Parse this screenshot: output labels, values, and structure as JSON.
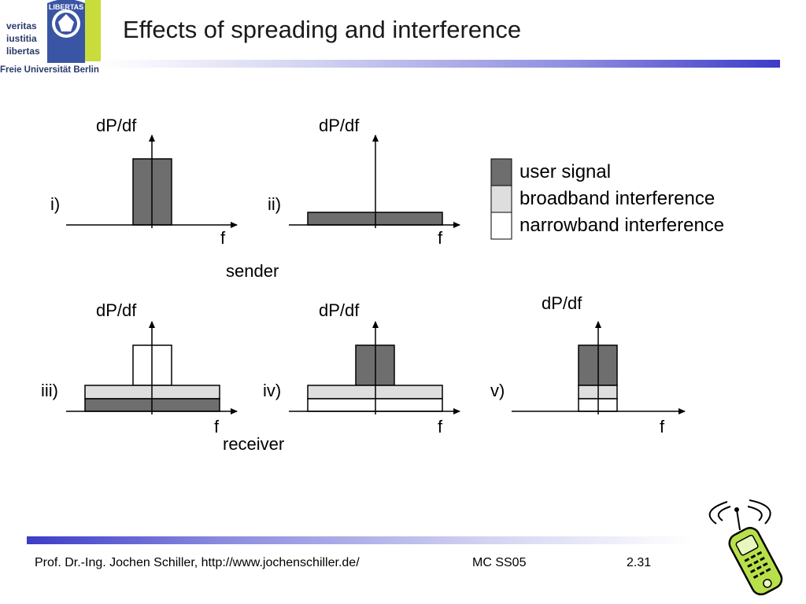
{
  "logo": {
    "motto_lines": [
      "veritas",
      "iustitia",
      "libertas"
    ],
    "seal_text": "LIBERTAS",
    "university": "Freie Universität Berlin"
  },
  "title": "Effects of spreading and interference",
  "axis_labels": {
    "y": "dP/df",
    "x": "f"
  },
  "panels": [
    {
      "id": "i",
      "label": "i)"
    },
    {
      "id": "ii",
      "label": "ii)"
    },
    {
      "id": "iii",
      "label": "iii)"
    },
    {
      "id": "iv",
      "label": "iv)"
    },
    {
      "id": "v",
      "label": "v)"
    }
  ],
  "group_labels": {
    "sender": "sender",
    "receiver": "receiver"
  },
  "legend": [
    {
      "label": "user signal",
      "color": "#6e6e6e"
    },
    {
      "label": "broadband interference",
      "color": "#dedede"
    },
    {
      "label": "narrowband interference",
      "color": "#ffffff"
    }
  ],
  "footer": {
    "author": "Prof. Dr.-Ing. Jochen Schiller, http://www.jochenschiller.de/",
    "course": "MC SS05",
    "page": "2.31"
  },
  "colors": {
    "user_signal": "#6e6e6e",
    "broadband": "#dedede",
    "narrowband": "#ffffff",
    "bar_accent": "#3c3cc8",
    "phone_green": "#b8e04a"
  }
}
